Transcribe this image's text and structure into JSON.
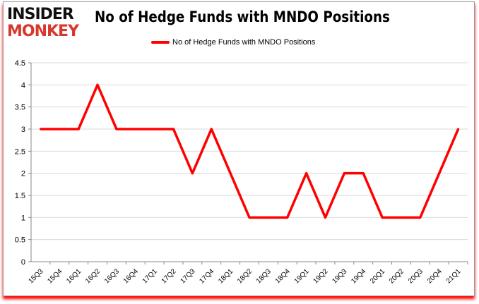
{
  "logo": {
    "line1": "INSIDER",
    "line2": "MONKEY"
  },
  "colors": {
    "series": "#ff0000",
    "axis": "#888888",
    "grid": "#d9d9d9"
  },
  "chart_data": {
    "type": "line",
    "title": "No of Hedge Funds with MNDO Positions",
    "legend_position": "top",
    "grid": true,
    "ylim": [
      0,
      4.5
    ],
    "yticks": [
      "0",
      "0.5",
      "1",
      "1.5",
      "2",
      "2.5",
      "3",
      "3.5",
      "4",
      "4.5"
    ],
    "categories": [
      "15Q3",
      "15Q4",
      "16Q1",
      "16Q2",
      "16Q3",
      "16Q4",
      "17Q1",
      "17Q2",
      "17Q3",
      "17Q4",
      "18Q1",
      "18Q2",
      "18Q3",
      "18Q4",
      "19Q1",
      "19Q2",
      "19Q3",
      "19Q4",
      "20Q1",
      "20Q2",
      "20Q3",
      "20Q4",
      "21Q1"
    ],
    "series": [
      {
        "name": "No of Hedge Funds with MNDO Positions",
        "values": [
          3,
          3,
          3,
          4,
          3,
          3,
          3,
          3,
          2,
          3,
          2,
          1,
          1,
          1,
          2,
          1,
          2,
          2,
          1,
          1,
          1,
          2,
          3
        ]
      }
    ]
  }
}
